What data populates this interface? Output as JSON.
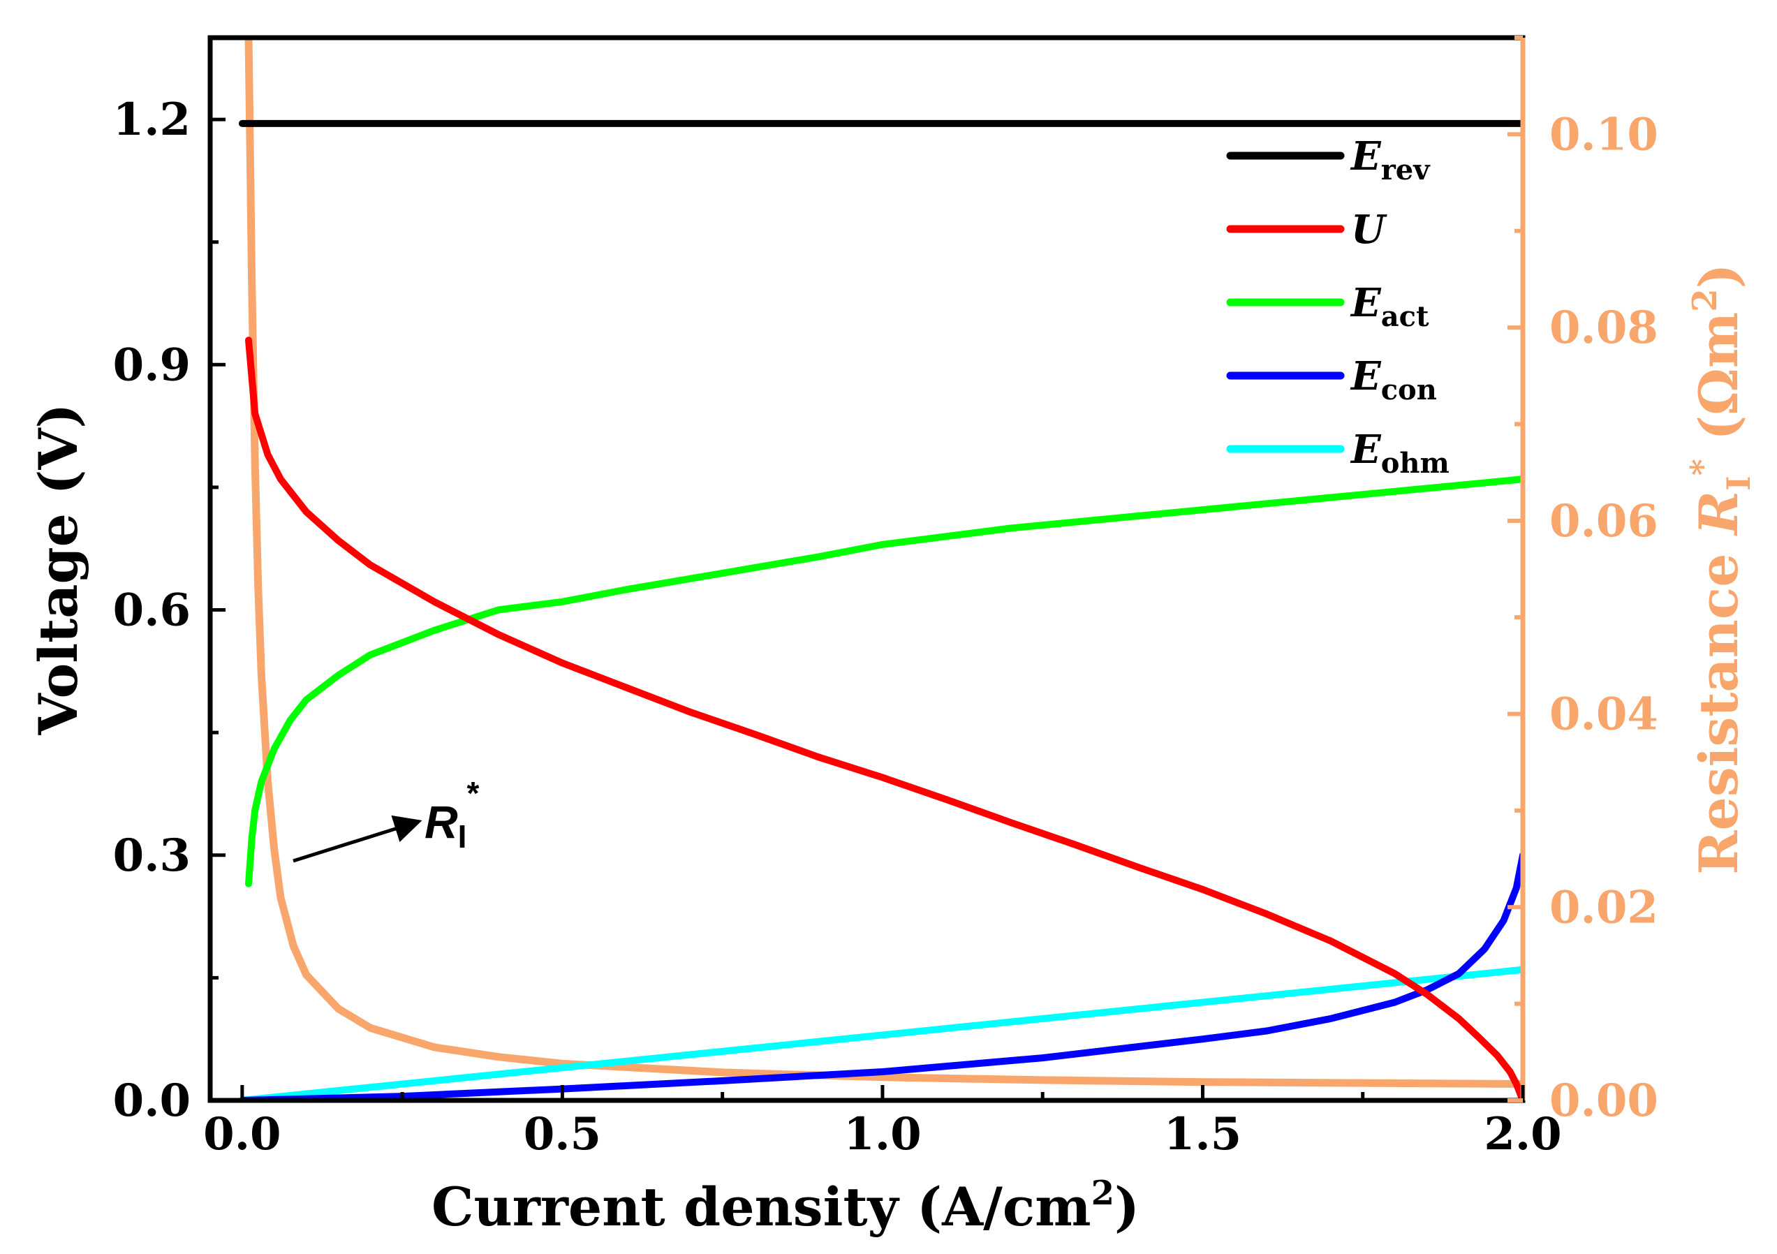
{
  "chart_data": {
    "type": "line",
    "x_label_main": "Current density (A/cm",
    "x_label_sup": "2",
    "x_label_end": ")",
    "y_label": "Voltage (V)",
    "y2_label_pre": "Resistance ",
    "y2_label_symbol": "R",
    "y2_label_sub": "I",
    "y2_label_sup": "*",
    "y2_label_post_main": " (Ωm",
    "y2_label_post_sup": "2",
    "y2_label_end": ")",
    "xlim": [
      -0.05,
      2.0
    ],
    "ylim": [
      0,
      1.3
    ],
    "y2lim": [
      0,
      0.11
    ],
    "x_ticks": [
      "0.0",
      "0.5",
      "1.0",
      "1.5",
      "2.0"
    ],
    "x_tick_values": [
      0,
      0.5,
      1.0,
      1.5,
      2.0
    ],
    "y_ticks": [
      "0.0",
      "0.3",
      "0.6",
      "0.9",
      "1.2"
    ],
    "y_tick_values": [
      0,
      0.3,
      0.6,
      0.9,
      1.2
    ],
    "y2_ticks": [
      "0.00",
      "0.02",
      "0.04",
      "0.06",
      "0.08",
      "0.10"
    ],
    "y2_tick_values": [
      0,
      0.02,
      0.04,
      0.06,
      0.08,
      0.1
    ],
    "colors": {
      "E_rev": "#000000",
      "U": "#FF0000",
      "E_act": "#00FF00",
      "E_con": "#0000FF",
      "E_ohm": "#00FFFF",
      "R_I": "#F9A66C"
    },
    "legend": [
      {
        "key": "E_rev",
        "symbol": "E",
        "sub": "rev"
      },
      {
        "key": "U",
        "symbol": "U",
        "sub": ""
      },
      {
        "key": "E_act",
        "symbol": "E",
        "sub": "act"
      },
      {
        "key": "E_con",
        "symbol": "E",
        "sub": "con"
      },
      {
        "key": "E_ohm",
        "symbol": "E",
        "sub": "ohm"
      }
    ],
    "annotation": {
      "symbol": "R",
      "sub": "I",
      "sup": "*"
    },
    "series": [
      {
        "name": "E_rev",
        "axis": "left",
        "x": [
          0.0,
          2.0
        ],
        "y": [
          1.195,
          1.195
        ]
      },
      {
        "name": "U",
        "axis": "left",
        "x": [
          0.01,
          0.02,
          0.04,
          0.06,
          0.1,
          0.15,
          0.2,
          0.3,
          0.4,
          0.5,
          0.6,
          0.7,
          0.8,
          0.9,
          1.0,
          1.1,
          1.2,
          1.3,
          1.4,
          1.5,
          1.6,
          1.7,
          1.8,
          1.85,
          1.9,
          1.93,
          1.96,
          1.98,
          1.99,
          2.0
        ],
        "y": [
          0.93,
          0.84,
          0.79,
          0.76,
          0.72,
          0.685,
          0.655,
          0.61,
          0.57,
          0.535,
          0.505,
          0.475,
          0.448,
          0.42,
          0.395,
          0.368,
          0.34,
          0.313,
          0.285,
          0.258,
          0.228,
          0.195,
          0.155,
          0.13,
          0.1,
          0.078,
          0.055,
          0.035,
          0.02,
          0.0
        ]
      },
      {
        "name": "E_act",
        "axis": "left",
        "x": [
          0.01,
          0.015,
          0.02,
          0.03,
          0.05,
          0.075,
          0.1,
          0.15,
          0.2,
          0.3,
          0.4,
          0.5,
          0.6,
          0.75,
          0.9,
          1.0,
          1.2,
          1.4,
          1.6,
          1.8,
          2.0
        ],
        "y": [
          0.265,
          0.32,
          0.355,
          0.39,
          0.43,
          0.465,
          0.49,
          0.52,
          0.545,
          0.575,
          0.6,
          0.61,
          0.625,
          0.645,
          0.665,
          0.68,
          0.7,
          0.715,
          0.73,
          0.745,
          0.76
        ]
      },
      {
        "name": "E_con",
        "axis": "left",
        "x": [
          0.0,
          0.25,
          0.5,
          0.75,
          1.0,
          1.25,
          1.5,
          1.6,
          1.7,
          1.8,
          1.85,
          1.9,
          1.94,
          1.97,
          1.99,
          2.0
        ],
        "y": [
          0.0,
          0.005,
          0.014,
          0.024,
          0.035,
          0.052,
          0.075,
          0.085,
          0.1,
          0.12,
          0.135,
          0.155,
          0.185,
          0.22,
          0.26,
          0.3
        ]
      },
      {
        "name": "E_ohm",
        "axis": "left",
        "x": [
          0.0,
          2.0
        ],
        "y": [
          0.0,
          0.16
        ]
      },
      {
        "name": "R_I",
        "axis": "right",
        "x": [
          0.01,
          0.012,
          0.015,
          0.02,
          0.025,
          0.03,
          0.04,
          0.05,
          0.06,
          0.08,
          0.1,
          0.15,
          0.2,
          0.3,
          0.4,
          0.5,
          0.75,
          1.0,
          1.25,
          1.5,
          1.75,
          2.0
        ],
        "y": [
          0.11,
          0.1,
          0.085,
          0.066,
          0.053,
          0.044,
          0.033,
          0.026,
          0.021,
          0.016,
          0.013,
          0.0095,
          0.0075,
          0.0055,
          0.0045,
          0.0038,
          0.0029,
          0.0024,
          0.0021,
          0.0019,
          0.0018,
          0.0017
        ]
      }
    ]
  }
}
